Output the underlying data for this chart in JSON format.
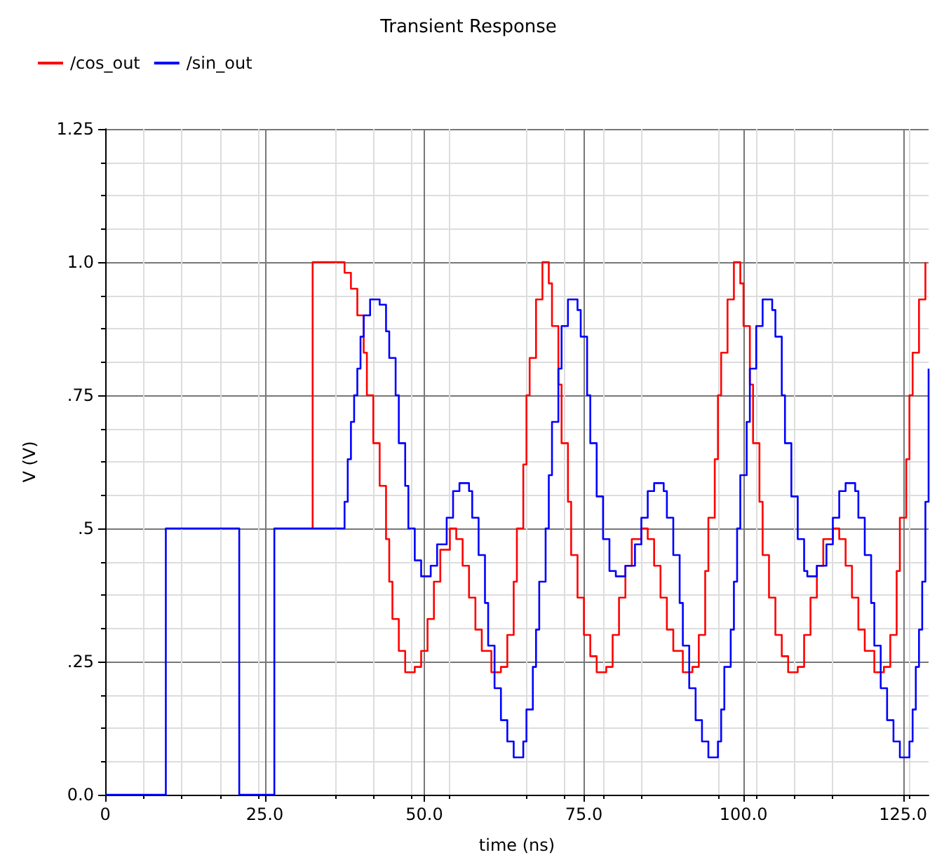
{
  "chart_data": {
    "type": "step",
    "title": "Transient Response",
    "xlabel": "time (ns)",
    "ylabel": "V (V)",
    "xlim": [
      0,
      129
    ],
    "xticks": [
      {
        "value": 0,
        "label": "0"
      },
      {
        "value": 25,
        "label": "25.0"
      },
      {
        "value": 50,
        "label": "50.0"
      },
      {
        "value": 75,
        "label": "75.0"
      },
      {
        "value": 100,
        "label": "100.0"
      },
      {
        "value": 125,
        "label": "125.0"
      }
    ],
    "ylim": [
      0,
      1.25
    ],
    "yticks": [
      {
        "value": 0,
        "label": "0.0"
      },
      {
        "value": 0.25,
        "label": ".25"
      },
      {
        "value": 0.5,
        "label": ".5"
      },
      {
        "value": 0.75,
        "label": ".75"
      },
      {
        "value": 1,
        "label": "1.0"
      },
      {
        "value": 1.25,
        "label": "1.25"
      }
    ],
    "grid": true,
    "legend": "top left",
    "marker": "none",
    "line_style": "solid",
    "series": [
      {
        "name": "/cos_out",
        "color": "#ff0000",
        "x": [
          32.5,
          32.5,
          37.5,
          38.5,
          39.5,
          40.5,
          41,
          42,
          43,
          44,
          44.5,
          45,
          46,
          47,
          48.5,
          49.5,
          50.5,
          51.5,
          52.5,
          54,
          55,
          56,
          57,
          58,
          59,
          60.5,
          62,
          63,
          64,
          64.5,
          65.5,
          66,
          66.5,
          67.5,
          68.5,
          69.5,
          70,
          71,
          71.5,
          72.5,
          73,
          74,
          75,
          76,
          77,
          78.5,
          79.5,
          80.5,
          81.5,
          82.5,
          84,
          85,
          86,
          87,
          88,
          89,
          90.5,
          92,
          93,
          94,
          94.5,
          95.5,
          96,
          96.5,
          97.5,
          98.5,
          99.5,
          100,
          101,
          101.5,
          102.5,
          103,
          104,
          105,
          106,
          107,
          108.5,
          109.5,
          110.5,
          111.5,
          112.5,
          114,
          115,
          116,
          117,
          118,
          119,
          120.5,
          122,
          123,
          124,
          124.5,
          125.5,
          126,
          126.5,
          127.5,
          128.5
        ],
        "values": [
          0.5,
          1.0,
          0.98,
          0.95,
          0.9,
          0.83,
          0.75,
          0.66,
          0.58,
          0.48,
          0.4,
          0.33,
          0.27,
          0.23,
          0.24,
          0.27,
          0.33,
          0.4,
          0.46,
          0.5,
          0.48,
          0.43,
          0.37,
          0.31,
          0.27,
          0.23,
          0.24,
          0.3,
          0.4,
          0.5,
          0.62,
          0.75,
          0.82,
          0.93,
          1.0,
          0.96,
          0.88,
          0.77,
          0.66,
          0.55,
          0.45,
          0.37,
          0.3,
          0.26,
          0.23,
          0.24,
          0.3,
          0.37,
          0.43,
          0.48,
          0.5,
          0.48,
          0.43,
          0.37,
          0.31,
          0.27,
          0.23,
          0.24,
          0.3,
          0.42,
          0.52,
          0.63,
          0.75,
          0.83,
          0.93,
          1.0,
          0.96,
          0.88,
          0.77,
          0.66,
          0.55,
          0.45,
          0.37,
          0.3,
          0.26,
          0.23,
          0.24,
          0.3,
          0.37,
          0.43,
          0.48,
          0.5,
          0.48,
          0.43,
          0.37,
          0.31,
          0.27,
          0.23,
          0.24,
          0.3,
          0.42,
          0.52,
          0.63,
          0.75,
          0.83,
          0.93,
          1.0
        ]
      },
      {
        "name": "/sin_out",
        "color": "#0000ff",
        "x": [
          0,
          9.5,
          21,
          26.5,
          37.5,
          38,
          38.5,
          39,
          39.5,
          40,
          40.5,
          41.5,
          43,
          44,
          44.5,
          45.5,
          46,
          47,
          47.5,
          48.5,
          49.5,
          51,
          52,
          53.5,
          54.5,
          55.5,
          57,
          57.5,
          58.5,
          59.5,
          60,
          61,
          62,
          63,
          64,
          65.5,
          66,
          67,
          67.5,
          68,
          69,
          69.5,
          70,
          71,
          71.5,
          72.5,
          74,
          74.5,
          75.5,
          76,
          77,
          78,
          79,
          80,
          81.5,
          83,
          84,
          85,
          86,
          87.5,
          88,
          89,
          90,
          90.5,
          91.5,
          92.5,
          93.5,
          94.5,
          96,
          96.5,
          97,
          98,
          98.5,
          99,
          99.5,
          100.5,
          101,
          102,
          103,
          104.5,
          105,
          106,
          106.5,
          107.5,
          108.5,
          109.5,
          110,
          111.5,
          113,
          114,
          115,
          116,
          117.5,
          118,
          119,
          120,
          120.5,
          121.5,
          122.5,
          123.5,
          124.5,
          126,
          126.5,
          127,
          127.5,
          128,
          128.5,
          129
        ],
        "values": [
          0,
          0.5,
          0,
          0.5,
          0.55,
          0.63,
          0.7,
          0.75,
          0.8,
          0.86,
          0.9,
          0.93,
          0.92,
          0.87,
          0.82,
          0.75,
          0.66,
          0.58,
          0.5,
          0.44,
          0.41,
          0.43,
          0.47,
          0.52,
          0.57,
          0.585,
          0.57,
          0.52,
          0.45,
          0.36,
          0.28,
          0.2,
          0.14,
          0.1,
          0.07,
          0.1,
          0.16,
          0.24,
          0.31,
          0.4,
          0.5,
          0.6,
          0.7,
          0.8,
          0.88,
          0.93,
          0.91,
          0.86,
          0.75,
          0.66,
          0.56,
          0.48,
          0.42,
          0.41,
          0.43,
          0.47,
          0.52,
          0.57,
          0.585,
          0.57,
          0.52,
          0.45,
          0.36,
          0.28,
          0.2,
          0.14,
          0.1,
          0.07,
          0.1,
          0.16,
          0.24,
          0.31,
          0.4,
          0.5,
          0.6,
          0.7,
          0.8,
          0.88,
          0.93,
          0.91,
          0.86,
          0.75,
          0.66,
          0.56,
          0.48,
          0.42,
          0.41,
          0.43,
          0.47,
          0.52,
          0.57,
          0.585,
          0.57,
          0.52,
          0.45,
          0.36,
          0.28,
          0.2,
          0.14,
          0.1,
          0.07,
          0.1,
          0.16,
          0.24,
          0.31,
          0.4,
          0.55,
          0.8
        ]
      }
    ]
  }
}
